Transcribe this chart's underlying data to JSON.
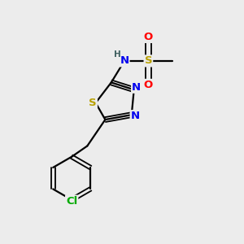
{
  "bg_color": "#ececec",
  "atom_colors": {
    "S_thiadiazole": "#b8a000",
    "S_sulfonyl": "#b8a000",
    "N": "#0000ee",
    "Cl": "#00aa00",
    "O": "#ff0000",
    "C": "#000000",
    "H": "#406060"
  },
  "bond_color": "#000000",
  "figsize": [
    3.0,
    3.0
  ],
  "dpi": 100
}
